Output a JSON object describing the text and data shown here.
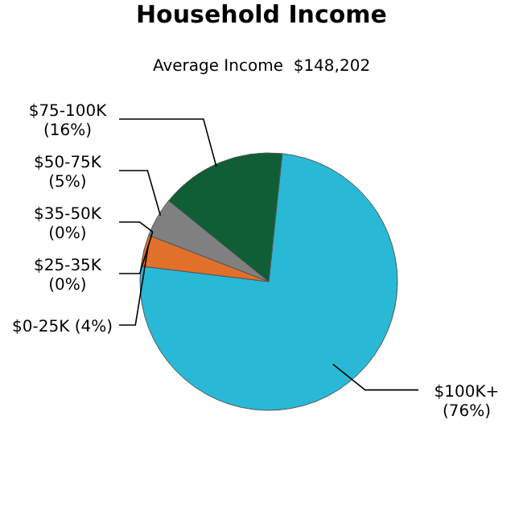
{
  "chart_data": {
    "type": "pie",
    "title": "Household Income",
    "subtitle": "Average Income  $148,202",
    "categories": [
      "$100K+",
      "$0-25K",
      "$25-35K",
      "$35-50K",
      "$50-75K",
      "$75-100K"
    ],
    "values": [
      76,
      4,
      0,
      0,
      5,
      16
    ],
    "value_labels": [
      "(76%)",
      "(4%)",
      "(0%)",
      "(0%)",
      "(5%)",
      "(16%)"
    ],
    "colors": [
      "#29b9d6",
      "#e0702a",
      "#d9a04a",
      "#c05a20",
      "#808080",
      "#0f5e36"
    ]
  }
}
